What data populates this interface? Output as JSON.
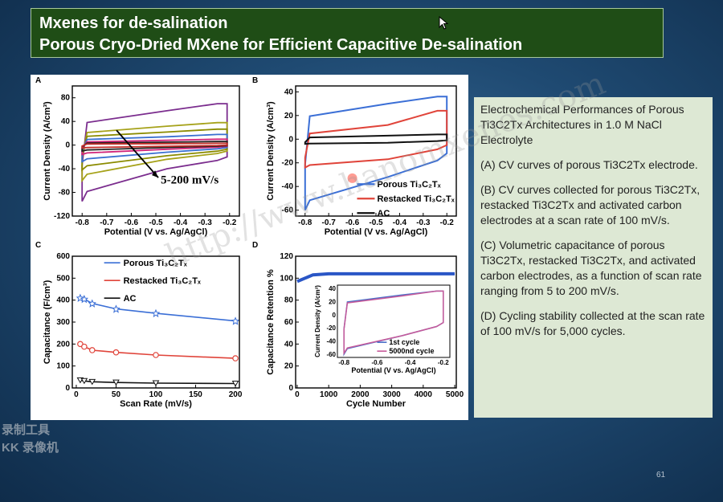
{
  "slide": {
    "title_line1": "Mxenes for de-salination",
    "title_line2": "Porous Cryo-Dried MXene for Efficient Capacitive De-salination",
    "page_number": "61",
    "watermark": "http://www.hanomxenes.com",
    "recorder_label_1": "录制工具",
    "recorder_label_2": "KK 录像机"
  },
  "notes": {
    "heading": "Electrochemical Performances of Porous Ti3C2Tx Architectures in 1.0 M NaCl Electrolyte",
    "a": "(A) CV curves of porous Ti3C2Tx electrode.",
    "b": "(B) CV curves collected for porous Ti3C2Tx, restacked Ti3C2Tx and activated carbon electrodes at a scan rate of 100 mV/s.",
    "c": "(C) Volumetric capacitance of porous Ti3C2Tx, restacked Ti3C2Tx, and activated carbon electrodes, as a function of scan rate ranging from 5 to 200 mV/s.",
    "d": "(D) Cycling stability collected at the scan rate of 100 mV/s for 5,000 cycles."
  },
  "colors": {
    "porous": "#3b6fd6",
    "restacked": "#e0443a",
    "ac": "#111111",
    "inset_first": "#4a6fc8",
    "inset_last": "#c75a9a"
  },
  "chart_data": [
    {
      "type": "line",
      "panel": "A",
      "xlabel": "Potential (V vs. Ag/AgCl)",
      "ylabel": "Current Density (A/cm³)",
      "x_ticks": [
        -0.8,
        -0.7,
        -0.6,
        -0.5,
        -0.4,
        -0.3,
        -0.2
      ],
      "y_ticks": [
        -120,
        -80,
        -40,
        0,
        40,
        80
      ],
      "xlim": [
        -0.84,
        -0.16
      ],
      "ylim": [
        -120,
        100
      ],
      "annotation": "5-200 mV/s",
      "series": [
        {
          "color": "#7b2d8e",
          "top": [
            -8,
            58,
            70
          ],
          "bottom": [
            -95,
            -40,
            -20
          ]
        },
        {
          "color": "#a6a21a",
          "top": [
            -4,
            32,
            38
          ],
          "bottom": [
            -60,
            -24,
            -10
          ]
        },
        {
          "color": "#8b8b00",
          "top": [
            -2,
            22,
            27
          ],
          "bottom": [
            -42,
            -18,
            -7
          ]
        },
        {
          "color": "#3a6fd0",
          "top": [
            -1,
            14,
            18
          ],
          "bottom": [
            -28,
            -12,
            -4
          ]
        },
        {
          "color": "#d0247a",
          "top": [
            -1,
            8,
            10
          ],
          "bottom": [
            -16,
            -7,
            -2
          ]
        },
        {
          "color": "#222222",
          "top": [
            0,
            5,
            6
          ],
          "bottom": [
            -10,
            -4,
            -1
          ]
        },
        {
          "color": "#c4302a",
          "top": [
            0,
            2.5,
            3
          ],
          "bottom": [
            -5,
            -2,
            0
          ]
        }
      ]
    },
    {
      "type": "line",
      "panel": "B",
      "xlabel": "Potential (V vs. Ag/AgCl)",
      "ylabel": "Current Density (A/cm³)",
      "x_ticks": [
        -0.8,
        -0.7,
        -0.6,
        -0.5,
        -0.4,
        -0.3,
        -0.2
      ],
      "y_ticks": [
        -60,
        -40,
        -20,
        0,
        20,
        40
      ],
      "xlim": [
        -0.84,
        -0.16
      ],
      "ylim": [
        -65,
        45
      ],
      "series": [
        {
          "name": "Porous Ti₃C₂Tₓ",
          "color": "#3b6fd6",
          "top": [
            -5,
            30,
            36
          ],
          "bottom": [
            -60,
            -32,
            -12
          ]
        },
        {
          "name": "Restacked Ti₃C₂Tₓ",
          "color": "#e0443a",
          "top": [
            -12,
            12,
            24
          ],
          "bottom": [
            -24,
            -17,
            -5
          ]
        },
        {
          "name": "AC",
          "color": "#111111",
          "top": [
            -2,
            3,
            4
          ],
          "bottom": [
            -4,
            -3,
            -1
          ]
        }
      ]
    },
    {
      "type": "line",
      "panel": "C",
      "xlabel": "Scan Rate (mV/s)",
      "ylabel": "Capacitance (F/cm³)",
      "x_ticks": [
        0,
        50,
        100,
        150,
        200
      ],
      "y_ticks": [
        0,
        100,
        200,
        300,
        400,
        500,
        600
      ],
      "xlim": [
        -5,
        205
      ],
      "ylim": [
        0,
        600
      ],
      "x": [
        5,
        10,
        20,
        50,
        100,
        200
      ],
      "series": [
        {
          "name": "Porous Ti₃C₂Tₓ",
          "color": "#3b6fd6",
          "values": [
            410,
            405,
            385,
            360,
            340,
            305
          ]
        },
        {
          "name": "Restacked Ti₃C₂Tₓ",
          "color": "#e0443a",
          "values": [
            200,
            188,
            172,
            162,
            150,
            135
          ]
        },
        {
          "name": "AC",
          "color": "#111111",
          "values": [
            35,
            32,
            28,
            25,
            22,
            20
          ]
        }
      ]
    },
    {
      "type": "scatter",
      "panel": "D",
      "xlabel": "Cycle Number",
      "ylabel": "Capacitance Retention %",
      "x_ticks": [
        0,
        1000,
        2000,
        3000,
        4000,
        5000
      ],
      "y_ticks": [
        0,
        20,
        40,
        60,
        80,
        100,
        120
      ],
      "xlim": [
        -50,
        5050
      ],
      "ylim": [
        0,
        120
      ],
      "retention": [
        [
          0,
          97
        ],
        [
          500,
          103
        ],
        [
          1000,
          104
        ],
        [
          2000,
          104
        ],
        [
          3000,
          104
        ],
        [
          4000,
          104
        ],
        [
          5000,
          104
        ]
      ],
      "inset": {
        "xlabel": "Potential (V vs. Ag/AgCl)",
        "ylabel": "Current Density (A/cm³)",
        "x_ticks": [
          -0.8,
          -0.6,
          -0.4,
          -0.2
        ],
        "y_ticks": [
          -60,
          -40,
          -20,
          0,
          20,
          40
        ],
        "xlim": [
          -0.84,
          -0.16
        ],
        "ylim": [
          -65,
          45
        ],
        "series": [
          {
            "name": "1st cycle",
            "color": "#4a6fc8"
          },
          {
            "name": "5000nd cycle",
            "color": "#c75a9a"
          }
        ]
      }
    }
  ]
}
